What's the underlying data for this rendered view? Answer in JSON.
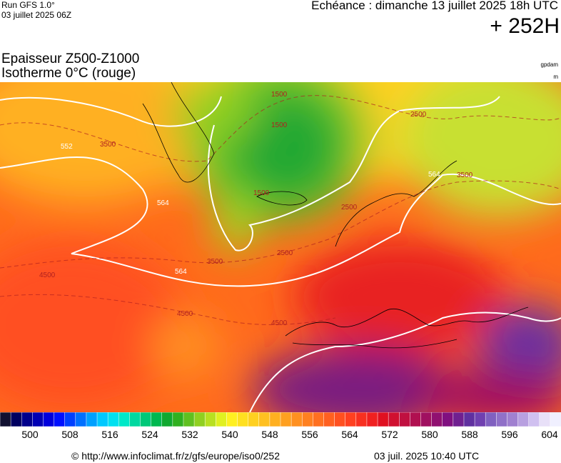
{
  "header": {
    "run": "Run GFS 1.0°",
    "run_date": "03 juillet 2025 06Z",
    "valid": "Echéance : dimanche 13 juillet 2025 18h UTC",
    "lead": "+ 252H",
    "title": "Epaisseur Z500-Z1000",
    "subtitle": "Isotherme 0°C (rouge)",
    "unit_thickness": "gpdam",
    "unit_iso": "m"
  },
  "map": {
    "contour_labels": [
      "1500",
      "1500",
      "1500",
      "2500",
      "2500",
      "2500",
      "3500",
      "3500",
      "3500",
      "4500",
      "4500",
      "4500",
      "564",
      "564",
      "564",
      "552"
    ]
  },
  "colorbar": {
    "labels": [
      "500",
      "508",
      "516",
      "524",
      "532",
      "540",
      "548",
      "556",
      "564",
      "572",
      "580",
      "588",
      "596",
      "604"
    ],
    "colors": [
      "#101030",
      "#000060",
      "#00008c",
      "#0000b4",
      "#0000dc",
      "#0010ff",
      "#0040ff",
      "#0070ff",
      "#00a0ff",
      "#00c8ff",
      "#00e0f0",
      "#00e8c8",
      "#00d8a0",
      "#00c878",
      "#00b850",
      "#10a830",
      "#30b020",
      "#60c020",
      "#90d020",
      "#b8e020",
      "#e0f020",
      "#fff020",
      "#ffe020",
      "#ffd020",
      "#ffc020",
      "#ffb020",
      "#ffa020",
      "#ff9020",
      "#ff8020",
      "#ff7020",
      "#ff6020",
      "#ff5020",
      "#ff4020",
      "#f83020",
      "#f02020",
      "#e01020",
      "#d01030",
      "#c01040",
      "#b01050",
      "#a01060",
      "#901070",
      "#801080",
      "#702090",
      "#6030a0",
      "#7040b0",
      "#8060c0",
      "#9070c8",
      "#a080d0",
      "#b8a0e0",
      "#d0c0f0",
      "#e8e0f8",
      "#f0f0ff"
    ]
  },
  "footer": {
    "url": "© http://www.infoclimat.fr/z/gfs/europe/iso0/252",
    "stamp": "03 juil. 2025 10:40 UTC"
  }
}
